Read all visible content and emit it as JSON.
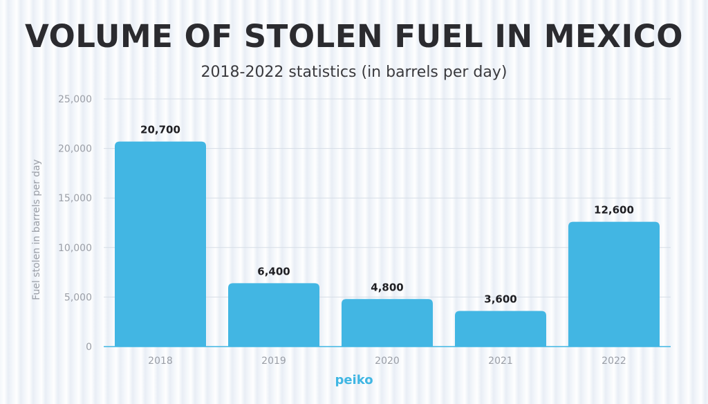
{
  "title": "VOLUME OF STOLEN FUEL IN MEXICO",
  "subtitle": "2018-2022 statistics (in barrels per day)",
  "brand": "peiko",
  "colors": {
    "bar": "#42b6e3",
    "axis": "#3fb6e3",
    "grid": "#d6dde6",
    "tick": "#9a9ea6",
    "label": "#1f1f23"
  },
  "chart_data": {
    "type": "bar",
    "categories": [
      "2018",
      "2019",
      "2020",
      "2021",
      "2022"
    ],
    "values": [
      20700,
      6400,
      4800,
      3600,
      12600
    ],
    "value_labels": [
      "20,700",
      "6,400",
      "4,800",
      "3,600",
      "12,600"
    ],
    "ylabel": "Fuel stolen in barrels per day",
    "xlabel": "",
    "ylim": [
      0,
      25000
    ],
    "yticks": [
      0,
      5000,
      10000,
      15000,
      20000,
      25000
    ],
    "ytick_labels": [
      "0",
      "5,000",
      "10,000",
      "15,000",
      "20,000",
      "25,000"
    ],
    "grid": true
  }
}
